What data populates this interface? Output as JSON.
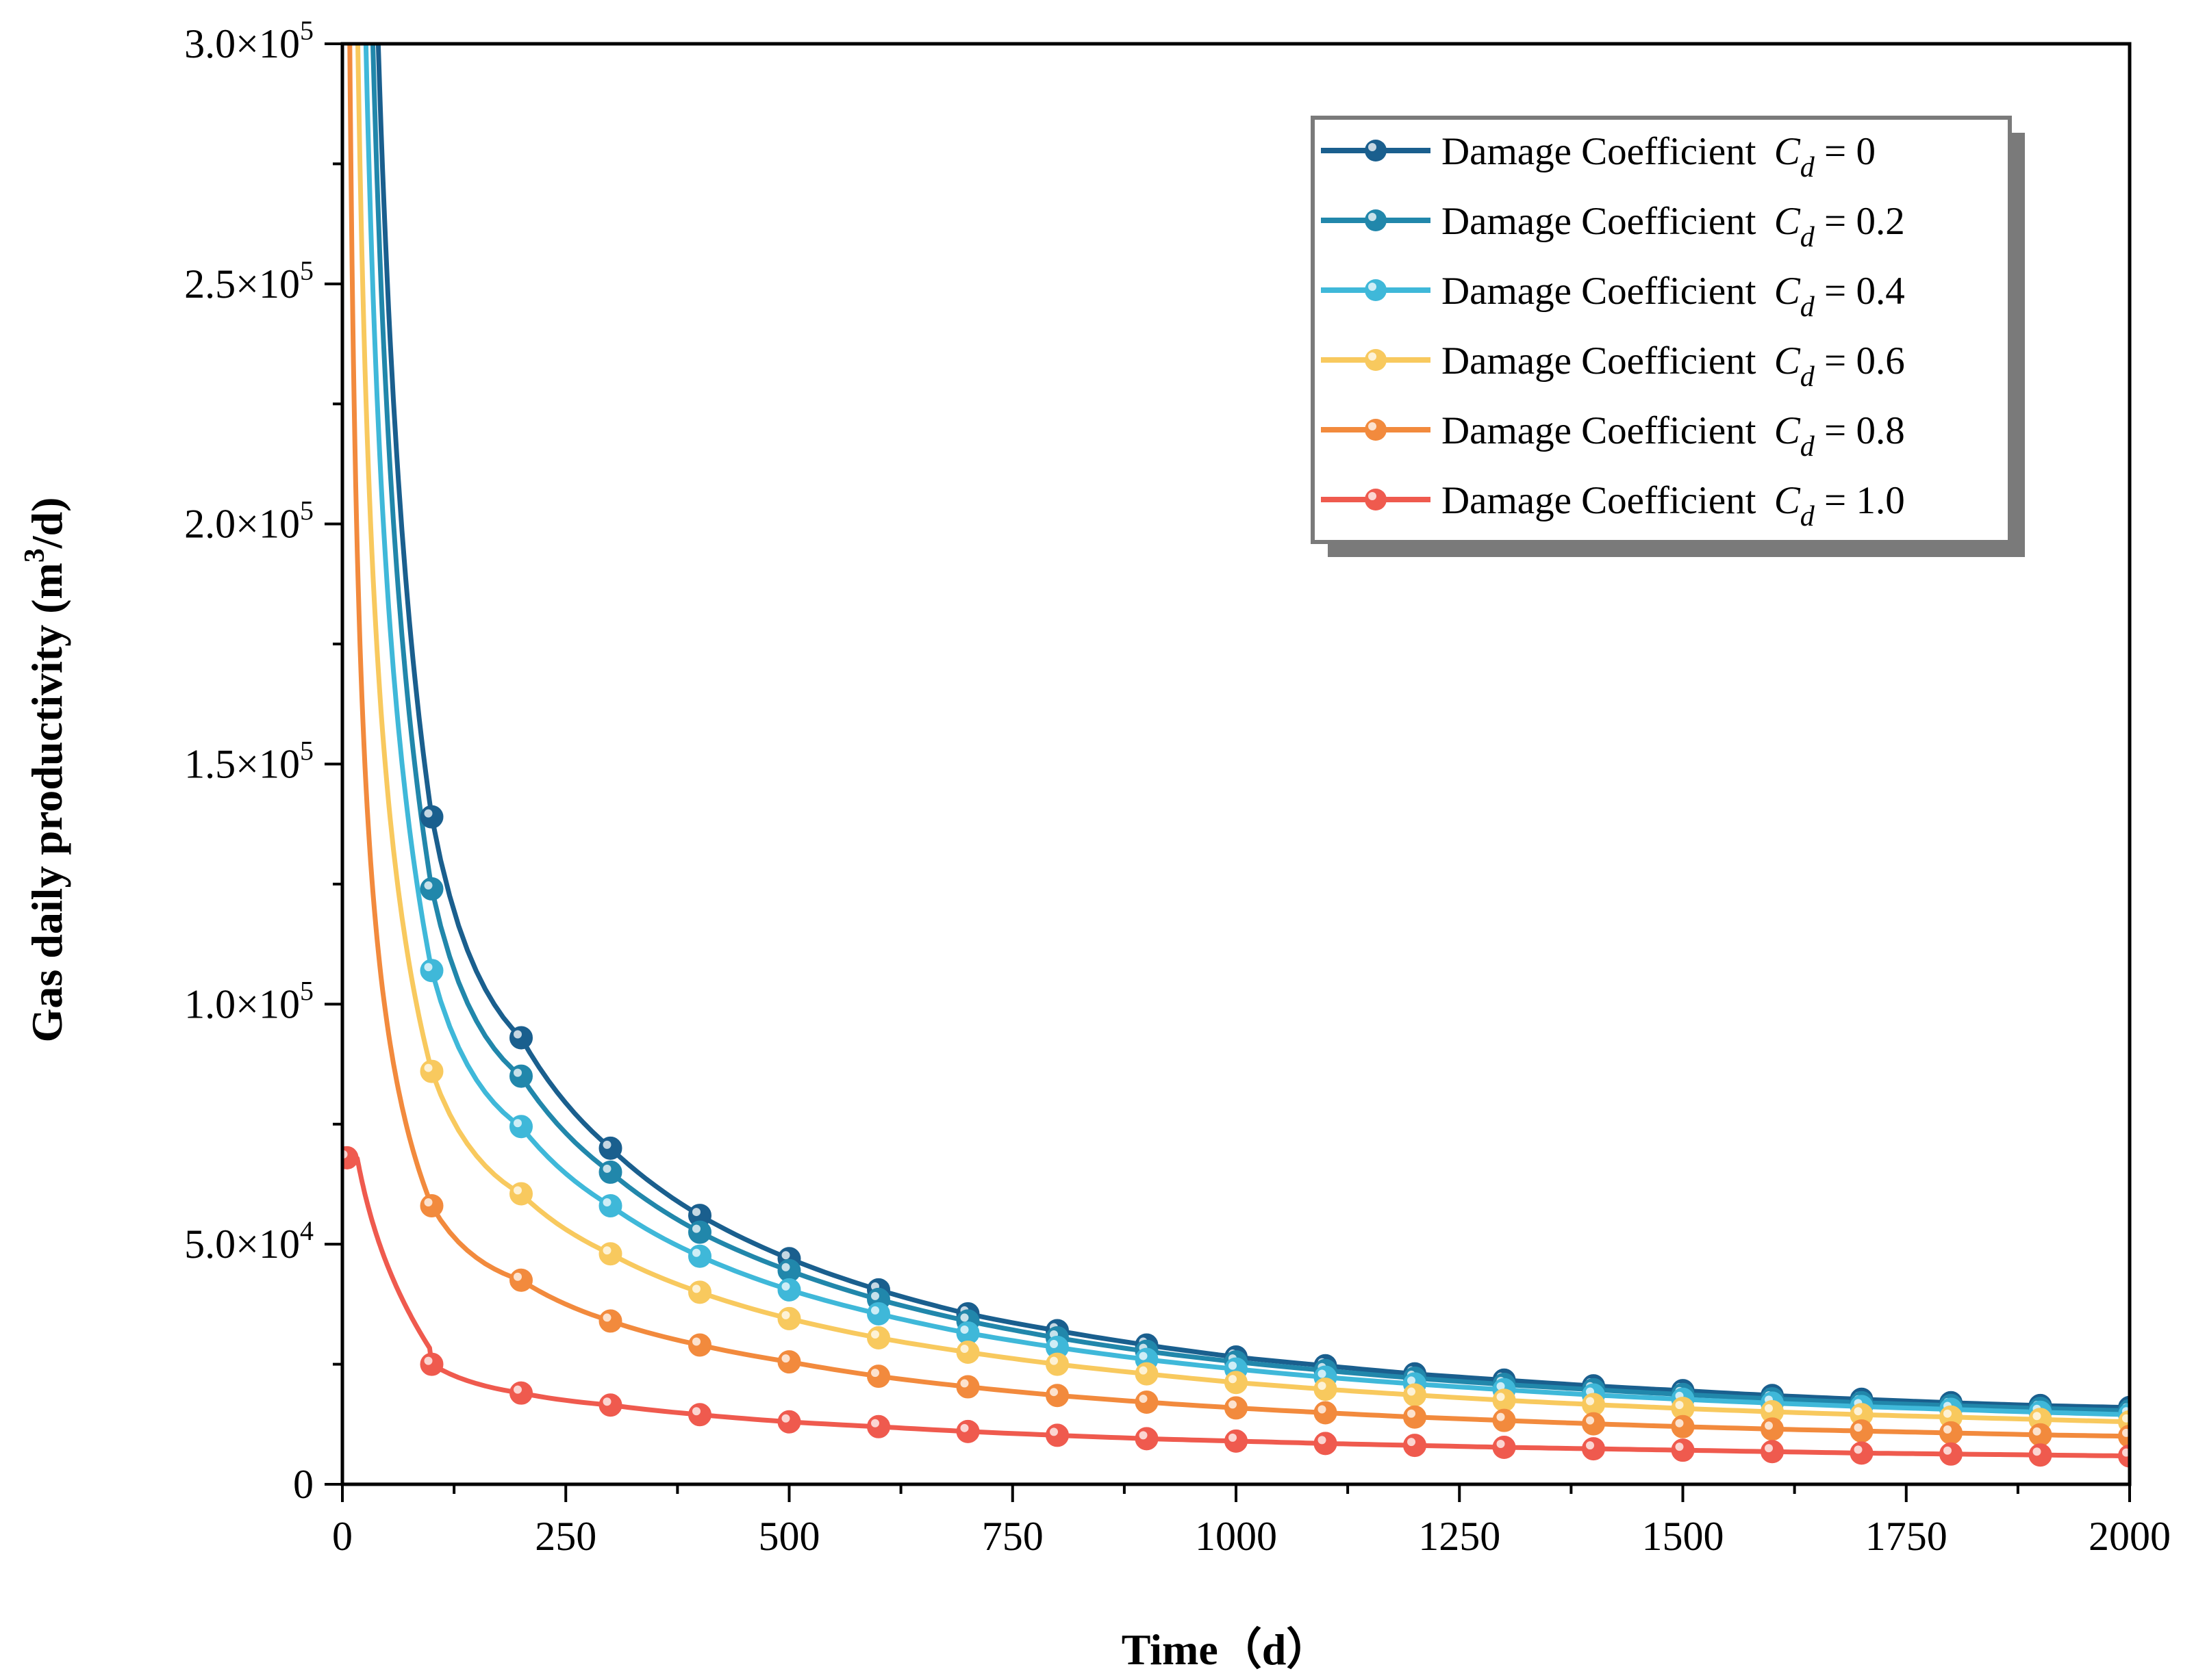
{
  "chart_data": {
    "type": "line",
    "xlabel": "Time（d）",
    "ylabel_main": "Gas daily productivity (m",
    "ylabel_sup": "3",
    "ylabel_tail": "/d)",
    "xlim": [
      0,
      2000
    ],
    "ylim": [
      0,
      300000
    ],
    "xticks": [
      0,
      250,
      500,
      750,
      1000,
      1250,
      1500,
      1750,
      2000
    ],
    "xtick_labels": [
      "0",
      "250",
      "500",
      "750",
      "1000",
      "1250",
      "1500",
      "1750",
      "2000"
    ],
    "yticks": [
      0,
      50000,
      100000,
      150000,
      200000,
      250000,
      300000
    ],
    "ytick_labels": [
      {
        "base": "0",
        "exp": ""
      },
      {
        "base": "5.0×10",
        "exp": "4"
      },
      {
        "base": "1.0×10",
        "exp": "5"
      },
      {
        "base": "1.5×10",
        "exp": "5"
      },
      {
        "base": "2.0×10",
        "exp": "5"
      },
      {
        "base": "2.5×10",
        "exp": "5"
      },
      {
        "base": "3.0×10",
        "exp": "5"
      }
    ],
    "grid": false,
    "legend_position": "top-right",
    "series": [
      {
        "name": "Damage Coefficient",
        "symbol": "C",
        "subscript": "d",
        "value_text": " = 0",
        "color": "#1a5f8e",
        "markers": [
          [
            100,
            139000
          ],
          [
            200,
            93000
          ],
          [
            300,
            70000
          ],
          [
            400,
            56000
          ],
          [
            500,
            47000
          ],
          [
            600,
            40500
          ],
          [
            700,
            35500
          ],
          [
            800,
            32000
          ],
          [
            900,
            29000
          ],
          [
            1000,
            26500
          ],
          [
            1100,
            24700
          ],
          [
            1200,
            23000
          ],
          [
            1300,
            21700
          ],
          [
            1400,
            20500
          ],
          [
            1500,
            19500
          ],
          [
            1600,
            18500
          ],
          [
            1700,
            17700
          ],
          [
            1800,
            17000
          ],
          [
            1900,
            16400
          ],
          [
            2000,
            16000
          ]
        ]
      },
      {
        "name": "Damage Coefficient",
        "symbol": "C",
        "subscript": "d",
        "value_text": " = 0.2",
        "color": "#2187ab",
        "markers": [
          [
            100,
            124000
          ],
          [
            200,
            85000
          ],
          [
            300,
            65000
          ],
          [
            400,
            52500
          ],
          [
            500,
            44500
          ],
          [
            600,
            38500
          ],
          [
            700,
            34000
          ],
          [
            800,
            30500
          ],
          [
            900,
            27700
          ],
          [
            1000,
            25500
          ],
          [
            1100,
            23700
          ],
          [
            1200,
            22100
          ],
          [
            1300,
            20800
          ],
          [
            1400,
            19700
          ],
          [
            1500,
            18700
          ],
          [
            1600,
            17800
          ],
          [
            1700,
            17000
          ],
          [
            1800,
            16400
          ],
          [
            1900,
            15800
          ],
          [
            2000,
            15300
          ]
        ]
      },
      {
        "name": "Damage Coefficient",
        "symbol": "C",
        "subscript": "d",
        "value_text": " = 0.4",
        "color": "#3fb8d9",
        "markers": [
          [
            100,
            107000
          ],
          [
            200,
            74500
          ],
          [
            300,
            58000
          ],
          [
            400,
            47500
          ],
          [
            500,
            40500
          ],
          [
            600,
            35500
          ],
          [
            700,
            31500
          ],
          [
            800,
            28500
          ],
          [
            900,
            26000
          ],
          [
            1000,
            24000
          ],
          [
            1100,
            22300
          ],
          [
            1200,
            20900
          ],
          [
            1300,
            19700
          ],
          [
            1400,
            18600
          ],
          [
            1500,
            17700
          ],
          [
            1600,
            16900
          ],
          [
            1700,
            16200
          ],
          [
            1800,
            15600
          ],
          [
            1900,
            15000
          ],
          [
            2000,
            14500
          ]
        ]
      },
      {
        "name": "Damage Coefficient",
        "symbol": "C",
        "subscript": "d",
        "value_text": " = 0.6",
        "color": "#f8c95e",
        "markers": [
          [
            100,
            86000
          ],
          [
            200,
            60500
          ],
          [
            300,
            48000
          ],
          [
            400,
            40000
          ],
          [
            500,
            34500
          ],
          [
            600,
            30500
          ],
          [
            700,
            27500
          ],
          [
            800,
            25000
          ],
          [
            900,
            23000
          ],
          [
            1000,
            21200
          ],
          [
            1100,
            19800
          ],
          [
            1200,
            18600
          ],
          [
            1300,
            17500
          ],
          [
            1400,
            16600
          ],
          [
            1500,
            15800
          ],
          [
            1600,
            15100
          ],
          [
            1700,
            14500
          ],
          [
            1800,
            14000
          ],
          [
            1900,
            13500
          ],
          [
            2000,
            13000
          ]
        ]
      },
      {
        "name": "Damage Coefficient",
        "symbol": "C",
        "subscript": "d",
        "value_text": " = 0.8",
        "color": "#f28a3d",
        "markers": [
          [
            100,
            58000
          ],
          [
            200,
            42500
          ],
          [
            300,
            34000
          ],
          [
            400,
            29000
          ],
          [
            500,
            25500
          ],
          [
            600,
            22500
          ],
          [
            700,
            20300
          ],
          [
            800,
            18500
          ],
          [
            900,
            17100
          ],
          [
            1000,
            15900
          ],
          [
            1100,
            14900
          ],
          [
            1200,
            14000
          ],
          [
            1300,
            13300
          ],
          [
            1400,
            12600
          ],
          [
            1500,
            12000
          ],
          [
            1600,
            11500
          ],
          [
            1700,
            11100
          ],
          [
            1800,
            10700
          ],
          [
            1900,
            10300
          ],
          [
            2000,
            10000
          ]
        ]
      },
      {
        "name": "Damage Coefficient",
        "symbol": "C",
        "subscript": "d",
        "value_text": " = 1.0",
        "color": "#ef5a4e",
        "markers": [
          [
            5,
            68000
          ],
          [
            100,
            25000
          ],
          [
            200,
            19000
          ],
          [
            300,
            16500
          ],
          [
            400,
            14500
          ],
          [
            500,
            13000
          ],
          [
            600,
            12000
          ],
          [
            700,
            11000
          ],
          [
            800,
            10200
          ],
          [
            900,
            9500
          ],
          [
            1000,
            9000
          ],
          [
            1100,
            8500
          ],
          [
            1200,
            8100
          ],
          [
            1300,
            7700
          ],
          [
            1400,
            7400
          ],
          [
            1500,
            7100
          ],
          [
            1600,
            6800
          ],
          [
            1700,
            6500
          ],
          [
            1800,
            6300
          ],
          [
            1900,
            6100
          ],
          [
            2000,
            5900
          ]
        ]
      }
    ]
  }
}
